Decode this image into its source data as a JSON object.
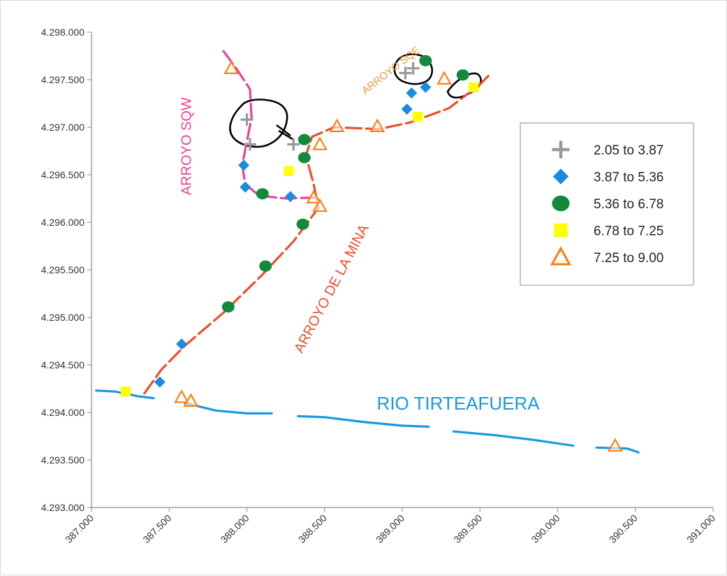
{
  "chart_data": {
    "type": "scatter",
    "title": "",
    "xlabel": "",
    "ylabel": "",
    "xlim": [
      387000,
      391000
    ],
    "ylim": [
      4293000,
      4298000
    ],
    "grid": false,
    "legend_position": "right",
    "x_ticks": [
      "387.000",
      "387.500",
      "388.000",
      "388.500",
      "389.000",
      "389.500",
      "390.000",
      "390.500",
      "391.000"
    ],
    "x_tick_values": [
      387000,
      387500,
      388000,
      388500,
      389000,
      389500,
      390000,
      390500,
      391000
    ],
    "y_ticks": [
      "4.298.000",
      "4.297.500",
      "4.297.000",
      "4.296.500",
      "4.296.000",
      "4.295.500",
      "4.295.000",
      "4.294.500",
      "4.294.000",
      "4.293.500",
      "4.293.000"
    ],
    "y_tick_values": [
      4298000,
      4297500,
      4297000,
      4296500,
      4296000,
      4295500,
      4295000,
      4294500,
      4294000,
      4293500,
      4293000
    ],
    "series": [
      {
        "name": "2.05 to 3.87",
        "marker": "cross",
        "color": "#999999",
        "points": [
          [
            388000,
            4297080
          ],
          [
            388020,
            4296820
          ],
          [
            388300,
            4296820
          ],
          [
            389020,
            4297570
          ],
          [
            389070,
            4297620
          ]
        ]
      },
      {
        "name": "3.87 to 5.36",
        "marker": "diamond",
        "color": "#1b8be0",
        "points": [
          [
            387440,
            4294320
          ],
          [
            387580,
            4294720
          ],
          [
            387980,
            4296600
          ],
          [
            387990,
            4296370
          ],
          [
            388280,
            4296270
          ],
          [
            389030,
            4297190
          ],
          [
            389060,
            4297360
          ],
          [
            389150,
            4297420
          ]
        ]
      },
      {
        "name": "5.36 to 6.78",
        "marker": "circle",
        "color": "#118a3c",
        "points": [
          [
            387880,
            4295110
          ],
          [
            388120,
            4295540
          ],
          [
            388100,
            4296300
          ],
          [
            388360,
            4295980
          ],
          [
            388370,
            4296680
          ],
          [
            388370,
            4296870
          ],
          [
            389150,
            4297700
          ],
          [
            389390,
            4297550
          ]
        ]
      },
      {
        "name": "6.78 to 7.25",
        "marker": "square",
        "color": "#ffff00",
        "points": [
          [
            387220,
            4294220
          ],
          [
            388270,
            4296540
          ],
          [
            389100,
            4297110
          ],
          [
            389460,
            4297420
          ]
        ]
      },
      {
        "name": "7.25 to 9.00",
        "marker": "triangle",
        "color": "#ff7f11",
        "points": [
          [
            387580,
            4294160
          ],
          [
            387640,
            4294120
          ],
          [
            387900,
            4297620
          ],
          [
            388430,
            4296260
          ],
          [
            388470,
            4296170
          ],
          [
            388470,
            4296820
          ],
          [
            388580,
            4297010
          ],
          [
            388840,
            4297010
          ],
          [
            389270,
            4297510
          ],
          [
            390370,
            4293650
          ]
        ]
      }
    ],
    "streams": [
      {
        "name": "ARROYO SQW",
        "color": "#e8439a",
        "dashed": true,
        "points": [
          [
            387850,
            4297800
          ],
          [
            387940,
            4297600
          ],
          [
            388020,
            4297400
          ],
          [
            388030,
            4297100
          ],
          [
            388000,
            4296850
          ],
          [
            387970,
            4296600
          ],
          [
            387990,
            4296400
          ],
          [
            388080,
            4296280
          ],
          [
            388250,
            4296250
          ],
          [
            388430,
            4296260
          ]
        ]
      },
      {
        "name": "ARROYO DE LA MINA",
        "color": "#ee4d2b",
        "dashed": true,
        "points": [
          [
            387340,
            4294200
          ],
          [
            387450,
            4294450
          ],
          [
            387600,
            4294700
          ],
          [
            387850,
            4295050
          ],
          [
            388100,
            4295450
          ],
          [
            388300,
            4295800
          ],
          [
            388460,
            4296150
          ],
          [
            388430,
            4296400
          ],
          [
            388380,
            4296700
          ],
          [
            388420,
            4296900
          ],
          [
            388560,
            4297000
          ],
          [
            388850,
            4296980
          ],
          [
            389050,
            4297050
          ],
          [
            389300,
            4297200
          ],
          [
            389500,
            4297450
          ],
          [
            389560,
            4297550
          ]
        ]
      },
      {
        "name": "RIO TIRTEAFUERA",
        "color": "#199ade",
        "dashed": false,
        "segments": [
          [
            [
              387030,
              4294230
            ],
            [
              387150,
              4294220
            ],
            [
              387300,
              4294170
            ],
            [
              387400,
              4294150
            ]
          ],
          [
            [
              387600,
              4294100
            ],
            [
              387800,
              4294020
            ],
            [
              388000,
              4293990
            ],
            [
              388160,
              4293990
            ]
          ],
          [
            [
              388330,
              4293960
            ],
            [
              388500,
              4293950
            ],
            [
              388750,
              4293900
            ],
            [
              389000,
              4293860
            ],
            [
              389170,
              4293850
            ]
          ],
          [
            [
              389330,
              4293800
            ],
            [
              389600,
              4293760
            ],
            [
              389850,
              4293710
            ],
            [
              390100,
              4293650
            ]
          ],
          [
            [
              390250,
              4293630
            ],
            [
              390450,
              4293620
            ],
            [
              390520,
              4293580
            ]
          ]
        ]
      }
    ],
    "annotations": [
      {
        "text": "ARROYO SQW",
        "x": 387640,
        "y": 4296800,
        "color": "#e8439a",
        "rotate": -90
      },
      {
        "text": "ARROYO SQE",
        "x": 388940,
        "y": 4297570,
        "color": "#f49a3b",
        "rotate": -38
      },
      {
        "text": "ARROYO  DE  LA MINA",
        "x": 388570,
        "y": 4295280,
        "color": "#ee4d2b",
        "rotate": -62
      },
      {
        "text": "RIO TIRTEAFUERA",
        "x": 389360,
        "y": 4294030,
        "color": "#199ade",
        "rotate": 0
      }
    ]
  }
}
